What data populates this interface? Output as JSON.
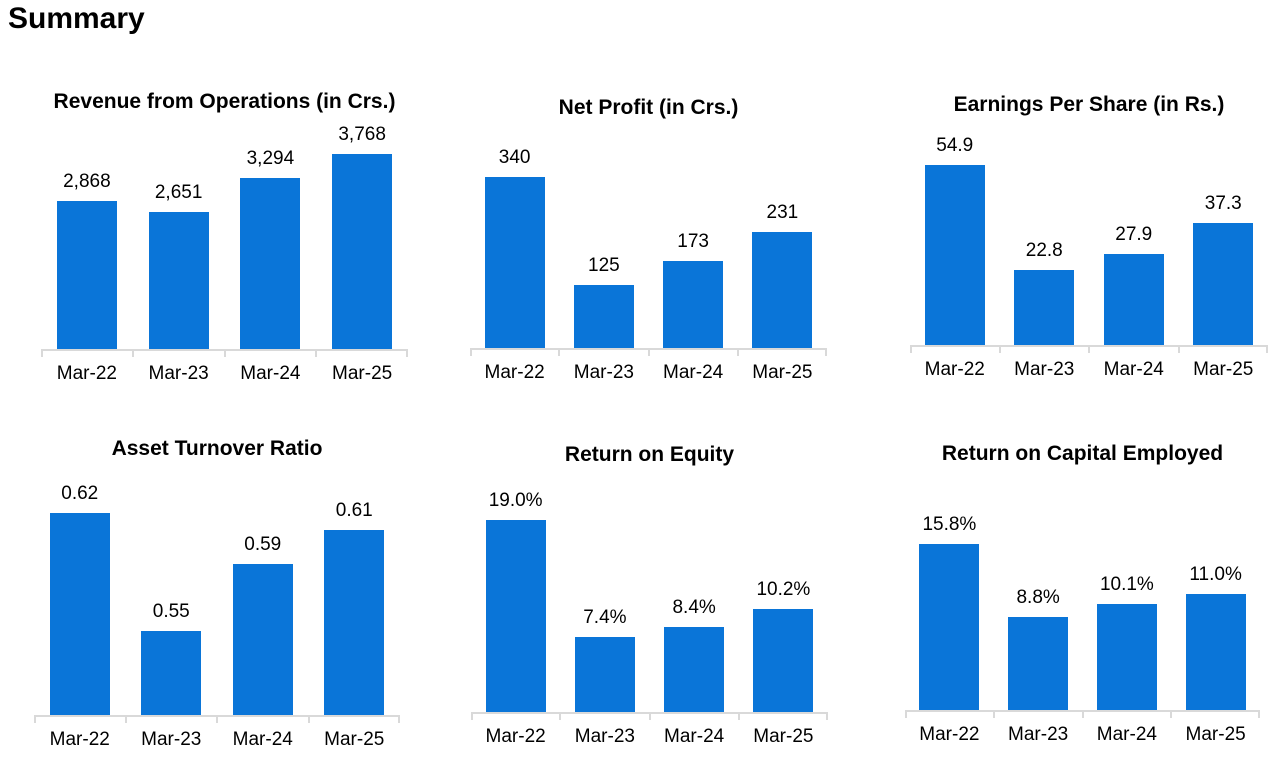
{
  "page": {
    "title": "Summary"
  },
  "colors": {
    "bar": "#0a75d8",
    "axis_line": "#d9d9d9",
    "text": "#000000",
    "background": "#ffffff"
  },
  "chart_data": [
    {
      "type": "bar",
      "title": "Revenue from Operations (in Crs.)",
      "categories": [
        "Mar-22",
        "Mar-23",
        "Mar-24",
        "Mar-25"
      ],
      "values": [
        2868,
        2651,
        3294,
        3768
      ],
      "value_labels": [
        "2,868",
        "2,651",
        "3,294",
        "3,768"
      ],
      "ylim": [
        0,
        4500
      ],
      "grid": false,
      "legend": false,
      "data_labels_position": "above-bars"
    },
    {
      "type": "bar",
      "title": "Net Profit (in Crs.)",
      "categories": [
        "Mar-22",
        "Mar-23",
        "Mar-24",
        "Mar-25"
      ],
      "values": [
        340,
        125,
        173,
        231
      ],
      "value_labels": [
        "340",
        "125",
        "173",
        "231"
      ],
      "ylim": [
        0,
        450
      ],
      "grid": false,
      "legend": false,
      "data_labels_position": "above-bars"
    },
    {
      "type": "bar",
      "title": "Earnings Per Share (in Rs.)",
      "categories": [
        "Mar-22",
        "Mar-23",
        "Mar-24",
        "Mar-25"
      ],
      "values": [
        54.9,
        22.8,
        27.9,
        37.3
      ],
      "value_labels": [
        "54.9",
        "22.8",
        "27.9",
        "37.3"
      ],
      "ylim": [
        0,
        69
      ],
      "grid": false,
      "legend": false,
      "data_labels_position": "above-bars"
    },
    {
      "type": "bar",
      "title": "Asset Turnover Ratio",
      "categories": [
        "Mar-22",
        "Mar-23",
        "Mar-24",
        "Mar-25"
      ],
      "values": [
        0.62,
        0.55,
        0.59,
        0.61
      ],
      "value_labels": [
        "0.62",
        "0.55",
        "0.59",
        "0.61"
      ],
      "ylim": [
        0.5,
        0.65
      ],
      "grid": false,
      "legend": false,
      "data_labels_position": "above-bars"
    },
    {
      "type": "bar",
      "title": "Return on Equity",
      "categories": [
        "Mar-22",
        "Mar-23",
        "Mar-24",
        "Mar-25"
      ],
      "values": [
        19.0,
        7.4,
        8.4,
        10.2
      ],
      "value_labels": [
        "19.0%",
        "7.4%",
        "8.4%",
        "10.2%"
      ],
      "ylim": [
        0,
        24
      ],
      "unit": "%",
      "grid": false,
      "legend": false,
      "data_labels_position": "above-bars"
    },
    {
      "type": "bar",
      "title": "Return on Capital Employed",
      "categories": [
        "Mar-22",
        "Mar-23",
        "Mar-24",
        "Mar-25"
      ],
      "values": [
        15.8,
        8.8,
        10.1,
        11.0
      ],
      "value_labels": [
        "15.8%",
        "8.8%",
        "10.1%",
        "11.0%"
      ],
      "ylim": [
        0,
        23
      ],
      "unit": "%",
      "grid": false,
      "legend": false,
      "data_labels_position": "above-bars"
    }
  ]
}
